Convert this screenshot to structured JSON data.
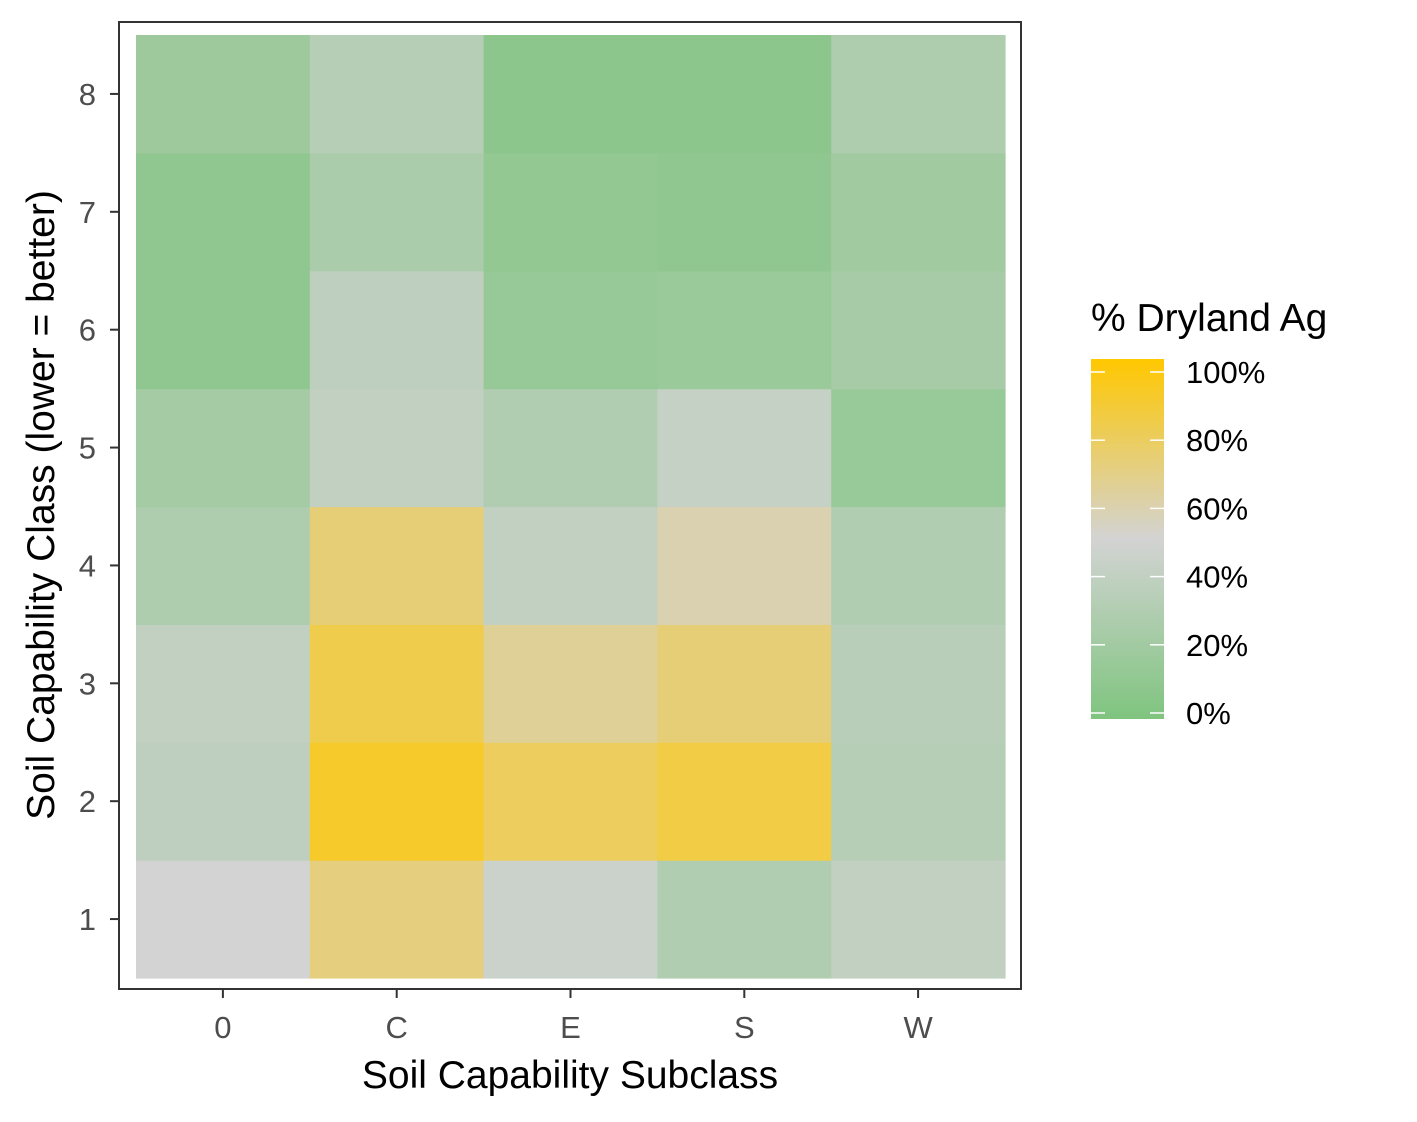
{
  "chart_data": {
    "type": "heatmap",
    "title": "",
    "xlabel": "Soil Capability Subclass",
    "ylabel": "Soil Capability Class (lower = better)",
    "x_categories": [
      "0",
      "C",
      "E",
      "S",
      "W"
    ],
    "y_categories": [
      "1",
      "2",
      "3",
      "4",
      "5",
      "6",
      "7",
      "8"
    ],
    "values": [
      [
        50,
        70,
        45,
        30,
        40
      ],
      [
        38,
        90,
        78,
        84,
        33
      ],
      [
        40,
        82,
        64,
        72,
        34
      ],
      [
        28,
        72,
        40,
        58,
        30
      ],
      [
        22,
        40,
        30,
        42,
        15
      ],
      [
        10,
        38,
        14,
        16,
        24
      ],
      [
        10,
        26,
        12,
        10,
        20
      ],
      [
        18,
        32,
        8,
        8,
        28
      ]
    ],
    "legend": {
      "title": "% Dryland Ag",
      "position": "right",
      "ticks": [
        "0%",
        "20%",
        "40%",
        "60%",
        "80%",
        "100%"
      ],
      "tick_values": [
        0,
        20,
        40,
        60,
        80,
        100
      ]
    },
    "color_scale": [
      {
        "value": 0,
        "color": "#7fc47f"
      },
      {
        "value": 50,
        "color": "#d3d3d3"
      },
      {
        "value": 100,
        "color": "#ffc800"
      }
    ],
    "limits": [
      0,
      100
    ],
    "grid": false
  }
}
